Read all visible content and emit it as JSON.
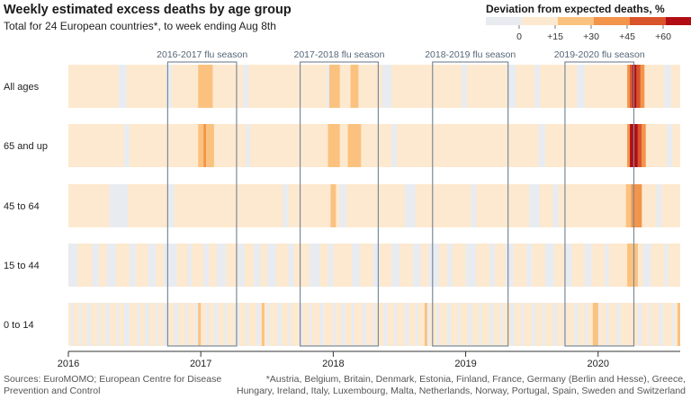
{
  "title": "Weekly estimated excess deaths by age group",
  "subtitle": "Total for 24 European countries*, to week ending Aug 8th",
  "legend": {
    "title": "Deviation from expected deaths, %",
    "ticks": [
      "0",
      "+15",
      "+30",
      "+45",
      "+60"
    ],
    "colors": [
      "#e8ecf1",
      "#fde9cf",
      "#fbc27f",
      "#f2944a",
      "#d9532b",
      "#b20d14"
    ]
  },
  "footer": {
    "sources": "Sources: EuroMOMO; European Centre for Disease Prevention and Control",
    "note": "*Austria, Belgium, Britain, Denmark, Estonia, Finland, France, Germany (Berlin and Hesse), Greece, Hungary, Ireland, Italy, Luxembourg, Malta, Netherlands, Norway, Portugal, Spain, Sweden and Switzerland"
  },
  "chart_data": {
    "type": "heatmap",
    "x_ticks": [
      "2016",
      "2017",
      "2018",
      "2019",
      "2020"
    ],
    "xlim": [
      2016.0,
      2020.62
    ],
    "rows": [
      "All ages",
      "65 and up",
      "45 to 64",
      "15 to 44",
      "0 to 14"
    ],
    "base_color": "#fde9cf",
    "neutral_color": "#e8ecf1",
    "flu_seasons": [
      {
        "label": "2016-2017 flu season",
        "start": 2016.75,
        "end": 2017.27
      },
      {
        "label": "2017-2018 flu season",
        "start": 2017.75,
        "end": 2018.34
      },
      {
        "label": "2018-2019 flu season",
        "start": 2018.75,
        "end": 2019.32
      },
      {
        "label": "2019-2020 flu season",
        "start": 2019.75,
        "end": 2020.27
      }
    ],
    "neutral_spans": [
      [
        [
          2016.38,
          2016.44
        ],
        [
          2016.74,
          2016.78
        ],
        [
          2017.32,
          2017.36
        ],
        [
          2017.95,
          2017.98
        ],
        [
          2018.37,
          2018.44
        ],
        [
          2018.97,
          2019.01
        ],
        [
          2019.32,
          2019.38
        ],
        [
          2019.52,
          2019.56
        ],
        [
          2019.84,
          2019.9
        ],
        [
          2020.5,
          2020.55
        ]
      ],
      [
        [
          2016.42,
          2016.46
        ],
        [
          2017.34,
          2017.37
        ],
        [
          2018.44,
          2018.48
        ],
        [
          2019.55,
          2019.6
        ],
        [
          2020.52,
          2020.56
        ]
      ],
      [
        [
          2016.31,
          2016.45
        ],
        [
          2016.75,
          2016.8
        ],
        [
          2017.62,
          2017.66
        ],
        [
          2018.05,
          2018.1
        ],
        [
          2018.54,
          2018.62
        ],
        [
          2019.04,
          2019.08
        ],
        [
          2019.48,
          2019.56
        ],
        [
          2019.66,
          2019.7
        ],
        [
          2020.44,
          2020.48
        ]
      ],
      [
        [
          2016.0,
          2016.07
        ],
        [
          2016.18,
          2016.23
        ],
        [
          2016.29,
          2016.36
        ],
        [
          2016.46,
          2016.51
        ],
        [
          2016.6,
          2016.66
        ],
        [
          2016.72,
          2016.82
        ],
        [
          2016.9,
          2016.93
        ],
        [
          2017.02,
          2017.06
        ],
        [
          2017.12,
          2017.19
        ],
        [
          2017.28,
          2017.33
        ],
        [
          2017.4,
          2017.45
        ],
        [
          2017.5,
          2017.57
        ],
        [
          2017.66,
          2017.7
        ],
        [
          2017.82,
          2017.9
        ],
        [
          2017.96,
          2018.0
        ],
        [
          2018.14,
          2018.2
        ],
        [
          2018.3,
          2018.35
        ],
        [
          2018.44,
          2018.5
        ],
        [
          2018.6,
          2018.66
        ],
        [
          2018.72,
          2018.8
        ],
        [
          2018.86,
          2018.9
        ],
        [
          2019.0,
          2019.08
        ],
        [
          2019.18,
          2019.22
        ],
        [
          2019.3,
          2019.36
        ],
        [
          2019.46,
          2019.5
        ],
        [
          2019.6,
          2019.67
        ],
        [
          2019.75,
          2019.8
        ],
        [
          2019.9,
          2019.95
        ],
        [
          2020.05,
          2020.08
        ],
        [
          2020.34,
          2020.4
        ],
        [
          2020.5,
          2020.53
        ]
      ],
      [
        [
          2016.02,
          2016.04
        ],
        [
          2016.08,
          2016.1
        ],
        [
          2016.14,
          2016.17
        ],
        [
          2016.22,
          2016.24
        ],
        [
          2016.28,
          2016.31
        ],
        [
          2016.36,
          2016.38
        ],
        [
          2016.42,
          2016.46
        ],
        [
          2016.52,
          2016.54
        ],
        [
          2016.58,
          2016.61
        ],
        [
          2016.66,
          2016.68
        ],
        [
          2016.72,
          2016.75
        ],
        [
          2016.8,
          2016.83
        ],
        [
          2016.88,
          2016.9
        ],
        [
          2016.96,
          2016.99
        ],
        [
          2017.04,
          2017.06
        ],
        [
          2017.1,
          2017.13
        ],
        [
          2017.18,
          2017.2
        ],
        [
          2017.26,
          2017.29
        ],
        [
          2017.34,
          2017.36
        ],
        [
          2017.42,
          2017.45
        ],
        [
          2017.5,
          2017.52
        ],
        [
          2017.58,
          2017.61
        ],
        [
          2017.66,
          2017.68
        ],
        [
          2017.74,
          2017.77
        ],
        [
          2017.82,
          2017.84
        ],
        [
          2017.9,
          2017.93
        ],
        [
          2018.0,
          2018.02
        ],
        [
          2018.06,
          2018.09
        ],
        [
          2018.14,
          2018.16
        ],
        [
          2018.22,
          2018.25
        ],
        [
          2018.3,
          2018.32
        ],
        [
          2018.38,
          2018.41
        ],
        [
          2018.46,
          2018.48
        ],
        [
          2018.54,
          2018.57
        ],
        [
          2018.62,
          2018.64
        ],
        [
          2018.7,
          2018.73
        ],
        [
          2018.78,
          2018.8
        ],
        [
          2018.86,
          2018.89
        ],
        [
          2018.94,
          2018.96
        ],
        [
          2019.02,
          2019.05
        ],
        [
          2019.1,
          2019.12
        ],
        [
          2019.18,
          2019.21
        ],
        [
          2019.26,
          2019.28
        ],
        [
          2019.34,
          2019.37
        ],
        [
          2019.42,
          2019.44
        ],
        [
          2019.5,
          2019.53
        ],
        [
          2019.58,
          2019.6
        ],
        [
          2019.66,
          2019.69
        ],
        [
          2019.74,
          2019.76
        ],
        [
          2019.82,
          2019.85
        ],
        [
          2019.9,
          2019.92
        ],
        [
          2019.98,
          2020.01
        ],
        [
          2020.06,
          2020.08
        ],
        [
          2020.14,
          2020.17
        ],
        [
          2020.3,
          2020.33
        ],
        [
          2020.38,
          2020.4
        ],
        [
          2020.46,
          2020.49
        ],
        [
          2020.56,
          2020.58
        ]
      ]
    ],
    "highlights": [
      [
        {
          "start": 2016.98,
          "end": 2017.09,
          "value": 20
        },
        {
          "start": 2017.97,
          "end": 2018.05,
          "value": 18
        },
        {
          "start": 2018.13,
          "end": 2018.19,
          "value": 18
        },
        {
          "start": 2020.22,
          "end": 2020.24,
          "value": 30
        },
        {
          "start": 2020.24,
          "end": 2020.26,
          "value": 58
        },
        {
          "start": 2020.26,
          "end": 2020.29,
          "value": 68
        },
        {
          "start": 2020.29,
          "end": 2020.32,
          "value": 48
        },
        {
          "start": 2020.32,
          "end": 2020.35,
          "value": 32
        }
      ],
      [
        {
          "start": 2016.98,
          "end": 2017.02,
          "value": 20
        },
        {
          "start": 2017.02,
          "end": 2017.04,
          "value": 42
        },
        {
          "start": 2017.04,
          "end": 2017.1,
          "value": 22
        },
        {
          "start": 2017.96,
          "end": 2018.05,
          "value": 20
        },
        {
          "start": 2018.11,
          "end": 2018.21,
          "value": 20
        },
        {
          "start": 2020.22,
          "end": 2020.24,
          "value": 32
        },
        {
          "start": 2020.24,
          "end": 2020.26,
          "value": 62
        },
        {
          "start": 2020.26,
          "end": 2020.3,
          "value": 70
        },
        {
          "start": 2020.3,
          "end": 2020.33,
          "value": 55
        },
        {
          "start": 2020.33,
          "end": 2020.36,
          "value": 35
        }
      ],
      [
        {
          "start": 2017.98,
          "end": 2018.02,
          "value": 17
        },
        {
          "start": 2020.21,
          "end": 2020.25,
          "value": 25
        },
        {
          "start": 2020.25,
          "end": 2020.29,
          "value": 42
        },
        {
          "start": 2020.29,
          "end": 2020.33,
          "value": 30
        }
      ],
      [
        {
          "start": 2020.22,
          "end": 2020.3,
          "value": 22
        }
      ],
      [
        {
          "start": 2016.98,
          "end": 2017.0,
          "value": 18
        },
        {
          "start": 2017.46,
          "end": 2017.48,
          "value": 17
        },
        {
          "start": 2018.69,
          "end": 2018.71,
          "value": 17
        },
        {
          "start": 2019.96,
          "end": 2020.0,
          "value": 20
        },
        {
          "start": 2020.6,
          "end": 2020.62,
          "value": 17
        }
      ]
    ]
  }
}
